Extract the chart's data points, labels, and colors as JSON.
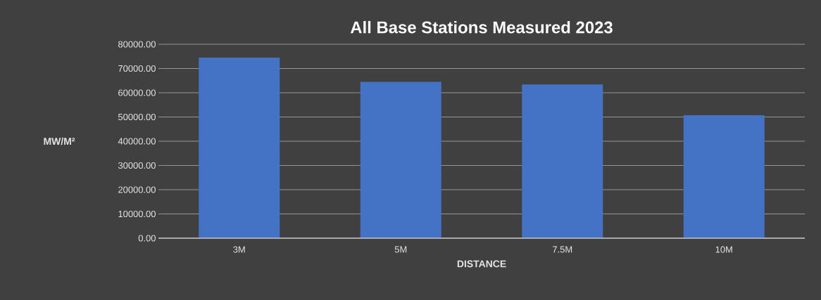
{
  "chart_data": {
    "type": "bar",
    "title": "All Base Stations Measured 2023",
    "xlabel": "DISTANCE",
    "ylabel": "MW/M²",
    "categories": [
      "3M",
      "5M",
      "7.5M",
      "10M"
    ],
    "values": [
      74500,
      64500,
      63400,
      50700
    ],
    "color": "#4472c4",
    "ylim": [
      0,
      80000
    ],
    "yticks": [
      {
        "value": 0,
        "label": "0.00"
      },
      {
        "value": 10000,
        "label": "10000.00"
      },
      {
        "value": 20000,
        "label": "20000.00"
      },
      {
        "value": 30000,
        "label": "30000.00"
      },
      {
        "value": 40000,
        "label": "40000.00"
      },
      {
        "value": 50000,
        "label": "50000.00"
      },
      {
        "value": 60000,
        "label": "60000.00"
      },
      {
        "value": 70000,
        "label": "70000.00"
      },
      {
        "value": 80000,
        "label": "80000.00"
      }
    ],
    "grid": "y"
  }
}
